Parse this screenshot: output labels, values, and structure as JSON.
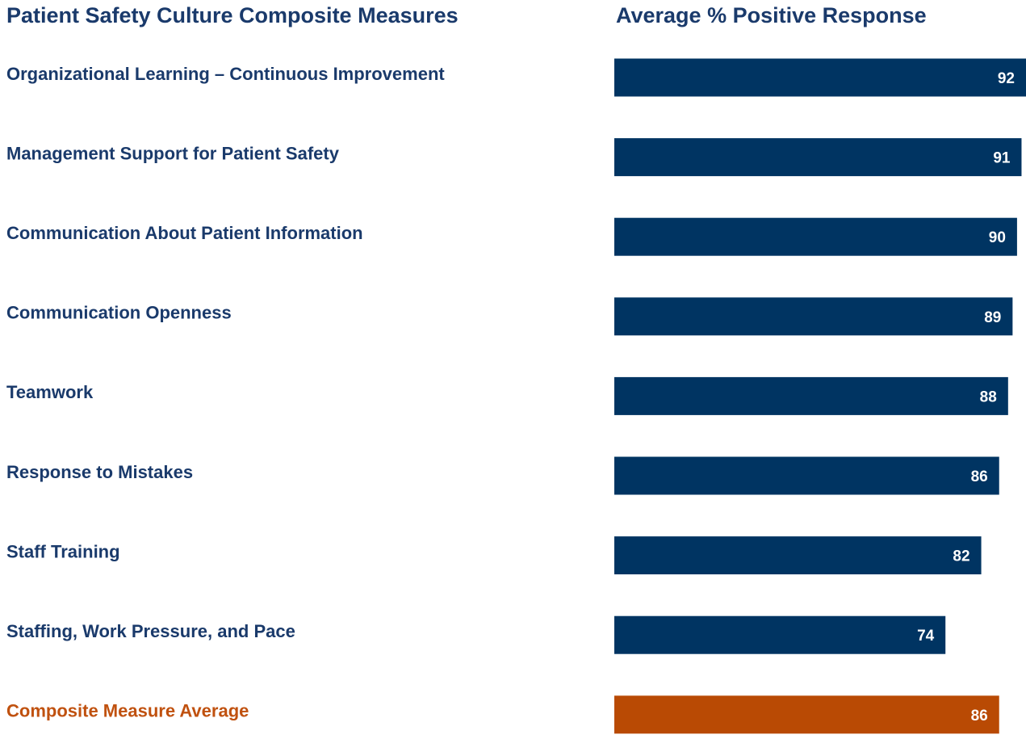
{
  "chart_data": {
    "type": "bar",
    "orientation": "horizontal",
    "title": "Patient Safety Culture Composite Measures",
    "value_title": "Average % Positive Response",
    "categories": [
      "Organizational Learning – Continuous Improvement",
      "Management Support for Patient Safety",
      "Communication About Patient Information",
      "Communication Openness",
      "Teamwork",
      "Response to Mistakes",
      "Staff Training",
      "Staffing, Work Pressure, and Pace",
      "Composite Measure Average"
    ],
    "values": [
      92,
      91,
      90,
      89,
      88,
      86,
      82,
      74,
      86
    ],
    "colors": [
      "#003462",
      "#003462",
      "#003462",
      "#003462",
      "#003462",
      "#003462",
      "#003462",
      "#003462",
      "#b94a04"
    ],
    "label_colors": [
      "#1a3a6b",
      "#1a3a6b",
      "#1a3a6b",
      "#1a3a6b",
      "#1a3a6b",
      "#1a3a6b",
      "#1a3a6b",
      "#1a3a6b",
      "#c0510f"
    ],
    "xlim": [
      0,
      92
    ]
  }
}
